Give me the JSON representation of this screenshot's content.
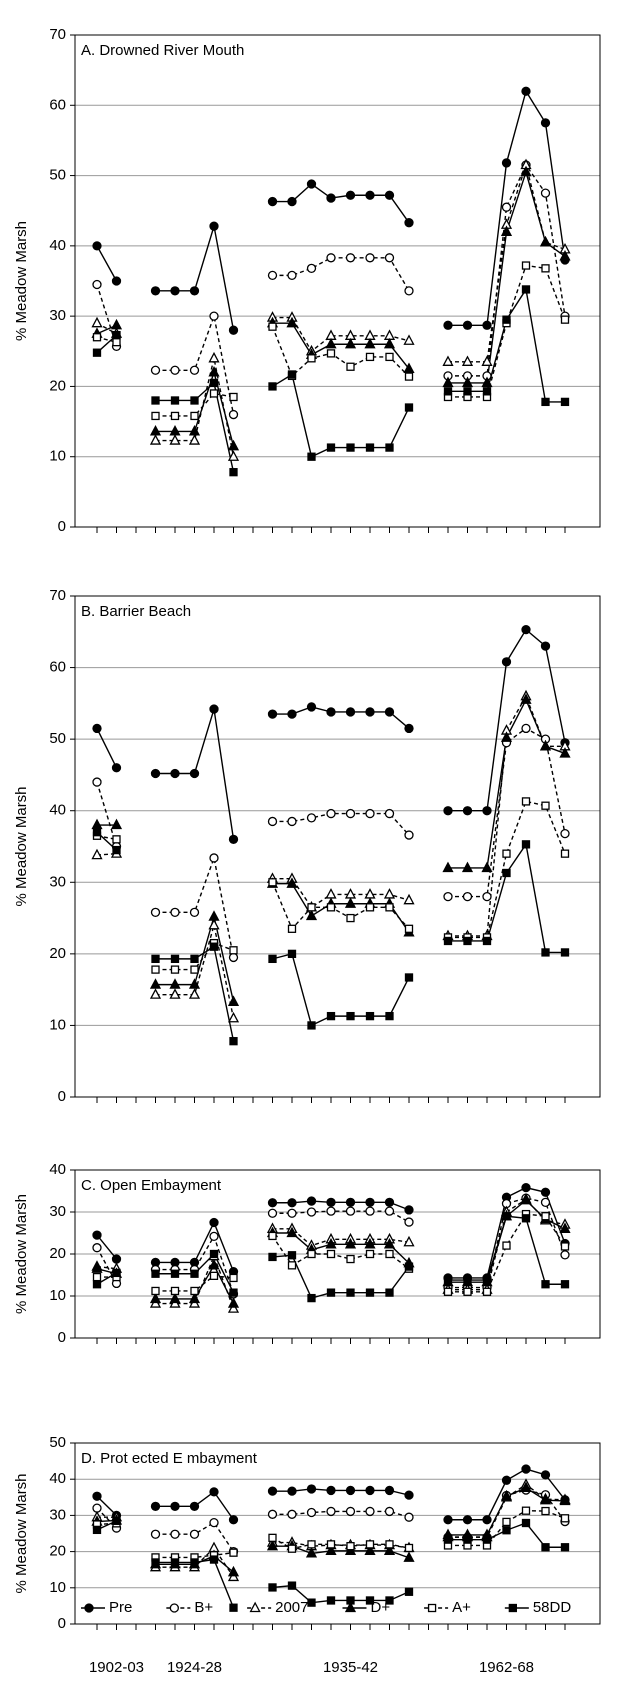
{
  "chart_data": [
    {
      "type": "line",
      "title": "A. Drowned River Mouth",
      "ylabel": "% Meadow Marsh",
      "categories": [
        null,
        null,
        null,
        null,
        null,
        null,
        null,
        null,
        null,
        null,
        null,
        null,
        null,
        null,
        null,
        null,
        null,
        null,
        null,
        null,
        null,
        null,
        null,
        null,
        null
      ],
      "ylim": [
        0,
        70
      ],
      "yticks": [
        0,
        10,
        20,
        30,
        40,
        50,
        60,
        70
      ],
      "grid": true,
      "series": [
        {
          "color": "#000000",
          "marker": "circle",
          "filled": true,
          "dashed": false,
          "values": [
            40,
            35,
            null,
            33.6,
            33.6,
            33.6,
            42.8,
            28,
            null,
            46.3,
            46.3,
            48.8,
            46.8,
            47.2,
            47.2,
            47.2,
            43.3,
            null,
            28.7,
            28.7,
            28.7,
            51.8,
            62,
            57.5,
            38
          ]
        },
        {
          "color": "#000000",
          "marker": "circle",
          "filled": false,
          "dashed": true,
          "values": [
            34.5,
            25.7,
            null,
            22.3,
            22.3,
            22.3,
            30,
            16,
            null,
            35.8,
            35.8,
            36.8,
            38.3,
            38.3,
            38.3,
            38.3,
            33.6,
            null,
            21.5,
            21.5,
            21.5,
            45.5,
            51.5,
            47.5,
            30
          ]
        },
        {
          "color": "#000000",
          "marker": "triangle",
          "filled": false,
          "dashed": true,
          "values": [
            29,
            27.5,
            null,
            12.3,
            12.3,
            12.3,
            24,
            10,
            null,
            29.8,
            29.8,
            25,
            27.2,
            27.2,
            27.2,
            27.2,
            26.5,
            null,
            23.5,
            23.5,
            23.5,
            43,
            51.5,
            40.5,
            39.5
          ]
        },
        {
          "color": "#000000",
          "marker": "triangle",
          "filled": true,
          "dashed": false,
          "values": [
            27.5,
            28.7,
            null,
            13.6,
            13.6,
            13.6,
            22,
            11.5,
            null,
            29,
            29,
            24.5,
            26,
            26,
            26,
            26,
            22.5,
            null,
            20.5,
            20.5,
            20.5,
            42,
            50.5,
            40.5,
            38.5
          ]
        },
        {
          "color": "#000000",
          "marker": "square",
          "filled": false,
          "dashed": true,
          "values": [
            27,
            26.3,
            null,
            15.8,
            15.8,
            15.8,
            19,
            18.5,
            null,
            28.5,
            21.5,
            24,
            24.7,
            22.8,
            24.2,
            24.2,
            21.4,
            null,
            18.5,
            18.5,
            18.5,
            29,
            37.2,
            36.8,
            29.5
          ]
        },
        {
          "color": "#000000",
          "marker": "square",
          "filled": true,
          "dashed": false,
          "values": [
            24.8,
            27.3,
            null,
            18,
            18,
            18,
            20.5,
            7.8,
            null,
            20,
            21.7,
            10,
            11.3,
            11.3,
            11.3,
            11.3,
            17,
            null,
            19.3,
            19.3,
            19.3,
            29.5,
            33.8,
            17.8,
            17.8
          ]
        }
      ]
    },
    {
      "type": "line",
      "title": "B. Barrier Beach",
      "ylabel": "% Meadow Marsh",
      "categories": [
        null,
        null,
        null,
        null,
        null,
        null,
        null,
        null,
        null,
        null,
        null,
        null,
        null,
        null,
        null,
        null,
        null,
        null,
        null,
        null,
        null,
        null,
        null,
        null,
        null
      ],
      "ylim": [
        0,
        70
      ],
      "yticks": [
        0,
        10,
        20,
        30,
        40,
        50,
        60,
        70
      ],
      "grid": true,
      "series": [
        {
          "color": "#000000",
          "marker": "circle",
          "filled": true,
          "dashed": false,
          "values": [
            51.5,
            46,
            null,
            45.2,
            45.2,
            45.2,
            54.2,
            36,
            null,
            53.5,
            53.5,
            54.5,
            53.8,
            53.8,
            53.8,
            53.8,
            51.5,
            null,
            40,
            40,
            40,
            60.8,
            65.3,
            63,
            49.5
          ]
        },
        {
          "color": "#000000",
          "marker": "circle",
          "filled": false,
          "dashed": true,
          "values": [
            44,
            35,
            null,
            25.8,
            25.8,
            25.8,
            33.4,
            19.5,
            null,
            38.5,
            38.5,
            39,
            39.6,
            39.6,
            39.6,
            39.6,
            36.6,
            null,
            28,
            28,
            28,
            49.5,
            51.5,
            50,
            36.8
          ]
        },
        {
          "color": "#000000",
          "marker": "triangle",
          "filled": false,
          "dashed": true,
          "values": [
            33.8,
            34,
            null,
            14.3,
            14.3,
            14.3,
            24,
            11,
            null,
            30.5,
            30.5,
            26.5,
            28.3,
            28.3,
            28.3,
            28.3,
            27.5,
            null,
            22.5,
            22.5,
            22.5,
            51.2,
            56,
            49,
            49
          ]
        },
        {
          "color": "#000000",
          "marker": "triangle",
          "filled": true,
          "dashed": false,
          "values": [
            38,
            38,
            null,
            15.7,
            15.7,
            15.7,
            25.2,
            13.3,
            null,
            29.8,
            29.8,
            25.3,
            27,
            27,
            27,
            27,
            23,
            null,
            32,
            32,
            32,
            50.2,
            55.5,
            49,
            48
          ]
        },
        {
          "color": "#000000",
          "marker": "square",
          "filled": false,
          "dashed": true,
          "values": [
            36.5,
            36,
            null,
            17.8,
            17.8,
            17.8,
            21.5,
            20.5,
            null,
            30,
            23.5,
            26.5,
            26.5,
            25,
            26.5,
            26.5,
            23.5,
            null,
            22.3,
            22.3,
            22.3,
            34,
            41.3,
            40.7,
            34
          ]
        },
        {
          "color": "#000000",
          "marker": "square",
          "filled": true,
          "dashed": false,
          "values": [
            37,
            34.5,
            null,
            19.3,
            19.3,
            19.3,
            21,
            7.8,
            null,
            19.3,
            20,
            10,
            11.3,
            11.3,
            11.3,
            11.3,
            16.7,
            null,
            21.8,
            21.8,
            21.8,
            31.3,
            35.3,
            20.2,
            20.2
          ]
        }
      ]
    },
    {
      "type": "line",
      "title": "C. Open Embayment",
      "ylabel": "% Meadow Marsh",
      "categories": [
        null,
        null,
        null,
        null,
        null,
        null,
        null,
        null,
        null,
        null,
        null,
        null,
        null,
        null,
        null,
        null,
        null,
        null,
        null,
        null,
        null,
        null,
        null,
        null,
        null
      ],
      "ylim": [
        0,
        40
      ],
      "yticks": [
        0,
        10,
        20,
        30,
        40
      ],
      "grid": true,
      "series": [
        {
          "color": "#000000",
          "marker": "circle",
          "filled": true,
          "dashed": false,
          "values": [
            24.5,
            18.8,
            null,
            18,
            18,
            18,
            27.5,
            15.8,
            null,
            32.2,
            32.2,
            32.6,
            32.3,
            32.3,
            32.3,
            32.3,
            30.5,
            null,
            14.3,
            14.3,
            14.3,
            33.5,
            35.8,
            34.7,
            22.5
          ]
        },
        {
          "color": "#000000",
          "marker": "circle",
          "filled": false,
          "dashed": true,
          "values": [
            21.5,
            13,
            null,
            16.3,
            16.3,
            16.3,
            24.2,
            10.5,
            null,
            29.7,
            29.7,
            30,
            30.2,
            30.2,
            30.2,
            30.2,
            27.6,
            null,
            12,
            12,
            12,
            32,
            33.3,
            32.3,
            19.8
          ]
        },
        {
          "color": "#000000",
          "marker": "triangle",
          "filled": false,
          "dashed": true,
          "values": [
            17,
            16.5,
            null,
            8.2,
            8.2,
            8.2,
            19.5,
            7,
            null,
            26,
            26,
            22,
            23.5,
            23.5,
            23.5,
            23.5,
            22.8,
            null,
            11.5,
            11.5,
            11.5,
            30,
            33,
            28,
            27
          ]
        },
        {
          "color": "#000000",
          "marker": "triangle",
          "filled": true,
          "dashed": false,
          "values": [
            16.5,
            15.3,
            null,
            9.3,
            9.3,
            9.3,
            17.3,
            8.2,
            null,
            25,
            25,
            21,
            22.3,
            22.3,
            22.3,
            22.3,
            17.8,
            null,
            13.3,
            13.3,
            13.3,
            29,
            32.8,
            28.3,
            26
          ]
        },
        {
          "color": "#000000",
          "marker": "square",
          "filled": false,
          "dashed": true,
          "values": [
            14.5,
            14.5,
            null,
            11.2,
            11.2,
            11.2,
            14.8,
            14.3,
            null,
            24.3,
            17.3,
            20,
            20,
            18.8,
            20,
            20,
            16.5,
            null,
            11,
            11,
            11,
            22,
            29.5,
            29,
            21.8
          ]
        },
        {
          "color": "#000000",
          "marker": "square",
          "filled": true,
          "dashed": false,
          "values": [
            12.8,
            15.5,
            null,
            15.3,
            15.3,
            15.3,
            20,
            10.8,
            null,
            19.3,
            19.7,
            9.5,
            10.8,
            10.8,
            10.8,
            10.8,
            17,
            null,
            13.8,
            13.8,
            13.8,
            29,
            28.5,
            12.8,
            12.8
          ]
        }
      ]
    },
    {
      "type": "line",
      "title": "D. Prot ected E mbayment",
      "ylabel": "% Meadow Marsh",
      "categories": [
        null,
        "1902-03",
        null,
        null,
        null,
        "1924-28",
        null,
        null,
        null,
        null,
        null,
        null,
        null,
        "1935-42",
        null,
        null,
        null,
        null,
        null,
        null,
        null,
        "1962-68",
        null,
        null,
        null
      ],
      "ylim": [
        0,
        50
      ],
      "yticks": [
        0,
        10,
        20,
        30,
        40,
        50
      ],
      "grid": true,
      "legend": "lower left",
      "series": [
        {
          "name": "Pre",
          "color": "#000000",
          "marker": "circle",
          "filled": true,
          "dashed": false,
          "values": [
            35.3,
            30,
            null,
            32.5,
            32.5,
            32.5,
            36.5,
            28.8,
            null,
            36.7,
            36.7,
            37.3,
            36.9,
            36.9,
            36.9,
            36.9,
            35.6,
            null,
            28.8,
            28.8,
            28.8,
            39.7,
            42.8,
            41.2,
            34.3
          ]
        },
        {
          "name": "B+",
          "color": "#000000",
          "marker": "circle",
          "filled": false,
          "dashed": true,
          "values": [
            32,
            26.5,
            null,
            24.8,
            24.8,
            24.8,
            28,
            20,
            null,
            30.3,
            30.3,
            30.8,
            31.1,
            31.1,
            31.1,
            31.1,
            29.5,
            null,
            24,
            24,
            24,
            35.5,
            37,
            35.7,
            28.3
          ]
        },
        {
          "name": "2007",
          "color": "#000000",
          "marker": "triangle",
          "filled": false,
          "dashed": true,
          "values": [
            29.5,
            29.5,
            null,
            15.7,
            15.7,
            15.7,
            21,
            13,
            null,
            22.5,
            22.5,
            21.5,
            21.8,
            21.8,
            21.8,
            21.8,
            21,
            null,
            24,
            24,
            24,
            35,
            38.5,
            34.5,
            34.3
          ]
        },
        {
          "name": "D+",
          "color": "#000000",
          "marker": "triangle",
          "filled": true,
          "dashed": false,
          "values": [
            28.3,
            28.6,
            null,
            16.5,
            16.5,
            16.5,
            18.8,
            14.3,
            null,
            21.5,
            21.5,
            19.5,
            20.2,
            20.2,
            20.2,
            20.2,
            18.3,
            null,
            24.6,
            24.6,
            24.6,
            35.3,
            37.6,
            34.2,
            34
          ]
        },
        {
          "name": "A+",
          "color": "#000000",
          "marker": "square",
          "filled": false,
          "dashed": true,
          "values": [
            27.5,
            27.8,
            null,
            18.4,
            18.4,
            18.4,
            19,
            19.7,
            null,
            23.8,
            20.8,
            22,
            22,
            21.5,
            22,
            22,
            21,
            null,
            21.7,
            21.7,
            21.7,
            28.2,
            31.3,
            31.2,
            29.2
          ]
        },
        {
          "name": "58DD",
          "color": "#000000",
          "marker": "square",
          "filled": true,
          "dashed": false,
          "values": [
            26,
            28.5,
            null,
            17,
            17,
            17,
            17.8,
            4.5,
            null,
            10.1,
            10.6,
            5.9,
            6.5,
            6.5,
            6.5,
            6.5,
            8.9,
            null,
            23.3,
            23.3,
            23.3,
            25.9,
            27.9,
            21.2,
            21.2
          ]
        }
      ]
    }
  ]
}
